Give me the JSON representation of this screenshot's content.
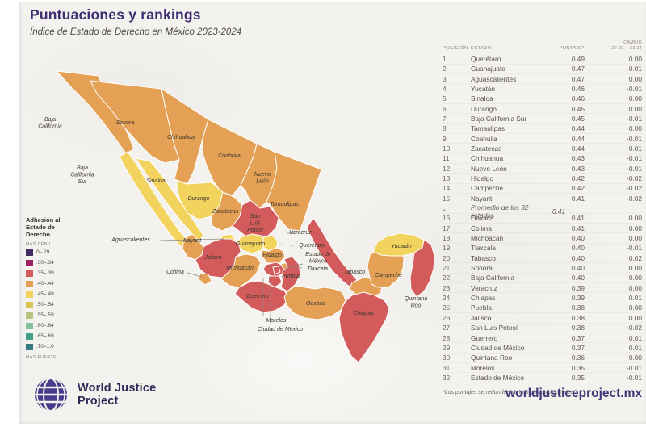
{
  "header": {
    "title": "Puntuaciones y rankings",
    "subtitle": "Índice de Estado de Derecho en México 2023-2024"
  },
  "colors": {
    "title_purple": "#3d2f72",
    "logo_purple": "#473c8b",
    "bands": {
      "yellow": "#f2d35e",
      "orange": "#e4a054",
      "red": "#d45b5c"
    }
  },
  "legend": {
    "title": "Adhesión al Estado de Derecho",
    "weak": "MÁS DÉBIL",
    "strong": "MÁS FUERTE",
    "bins": [
      {
        "label": "0–.29",
        "color": "#432a62"
      },
      {
        "label": ".30–.34",
        "color": "#9d2163"
      },
      {
        "label": ".35–.39",
        "color": "#d45b5c"
      },
      {
        "label": ".40–.44",
        "color": "#e4a054"
      },
      {
        "label": ".45–.49",
        "color": "#f2d35e"
      },
      {
        "label": ".50–.54",
        "color": "#d8c254"
      },
      {
        "label": ".55–.59",
        "color": "#b7c37e"
      },
      {
        "label": ".60–.64",
        "color": "#84c09e"
      },
      {
        "label": ".65–.69",
        "color": "#43a187"
      },
      {
        "label": ".70–1.0",
        "color": "#3b7a80"
      }
    ]
  },
  "table": {
    "col_posicion": "POSICIÓN",
    "col_estado": "ESTADO",
    "col_puntaje": "PUNTAJE*",
    "col_cambio_1": "CAMBIO",
    "col_cambio_2": "22-23 —23-24",
    "footnote": "*Los puntajes se redondean a dos puntos decimales.",
    "rows": [
      {
        "pos": "1",
        "estado": "Querétaro",
        "puntaje": "0.49",
        "cambio": "0.00",
        "band": "yellow"
      },
      {
        "pos": "2",
        "estado": "Guanajuato",
        "puntaje": "0.47",
        "cambio": "-0.01",
        "band": "yellow"
      },
      {
        "pos": "3",
        "estado": "Aguascalientes",
        "puntaje": "0.47",
        "cambio": "0.00",
        "band": "yellow"
      },
      {
        "pos": "4",
        "estado": "Yucatán",
        "puntaje": "0.46",
        "cambio": "-0.01",
        "band": "yellow"
      },
      {
        "pos": "5",
        "estado": "Sinaloa",
        "puntaje": "0.46",
        "cambio": "0.00",
        "band": "yellow"
      },
      {
        "pos": "6",
        "estado": "Durango",
        "puntaje": "0.45",
        "cambio": "0.00",
        "band": "yellow"
      },
      {
        "pos": "7",
        "estado": "Baja California Sur",
        "puntaje": "0.45",
        "cambio": "-0.01",
        "band": "yellow"
      },
      {
        "pos": "8",
        "estado": "Tamaulipas",
        "puntaje": "0.44",
        "cambio": "0.00",
        "band": "orange"
      },
      {
        "pos": "9",
        "estado": "Coahuila",
        "puntaje": "0.44",
        "cambio": "-0.01",
        "band": "orange"
      },
      {
        "pos": "10",
        "estado": "Zacatecas",
        "puntaje": "0.44",
        "cambio": "0.01",
        "band": "orange"
      },
      {
        "pos": "11",
        "estado": "Chihuahua",
        "puntaje": "0.43",
        "cambio": "-0.01",
        "band": "orange"
      },
      {
        "pos": "12",
        "estado": "Nuevo León",
        "puntaje": "0.43",
        "cambio": "-0.01",
        "band": "orange"
      },
      {
        "pos": "13",
        "estado": "Hidalgo",
        "puntaje": "0.42",
        "cambio": "-0.02",
        "band": "orange"
      },
      {
        "pos": "14",
        "estado": "Campeche",
        "puntaje": "0.42",
        "cambio": "-0.02",
        "band": "orange"
      },
      {
        "pos": "15",
        "estado": "Nayarit",
        "puntaje": "0.41",
        "cambio": "-0.02",
        "band": "orange"
      },
      {
        "pos": "*",
        "estado": "Promedio de los 32 estados",
        "puntaje": "0.41",
        "cambio": "",
        "band": null,
        "promedio": true
      },
      {
        "pos": "16",
        "estado": "Oaxaca",
        "puntaje": "0.41",
        "cambio": "0.00",
        "band": "orange"
      },
      {
        "pos": "17",
        "estado": "Colima",
        "puntaje": "0.41",
        "cambio": "0.00",
        "band": "orange"
      },
      {
        "pos": "18",
        "estado": "Michoacán",
        "puntaje": "0.40",
        "cambio": "0.00",
        "band": "orange"
      },
      {
        "pos": "19",
        "estado": "Tlaxcala",
        "puntaje": "0.40",
        "cambio": "-0.01",
        "band": "orange"
      },
      {
        "pos": "20",
        "estado": "Tabasco",
        "puntaje": "0.40",
        "cambio": "0.02",
        "band": "orange"
      },
      {
        "pos": "21",
        "estado": "Sonora",
        "puntaje": "0.40",
        "cambio": "0.00",
        "band": "orange"
      },
      {
        "pos": "22",
        "estado": "Baja California",
        "puntaje": "0.40",
        "cambio": "0.00",
        "band": "orange"
      },
      {
        "pos": "23",
        "estado": "Veracruz",
        "puntaje": "0.39",
        "cambio": "0.00",
        "band": "red"
      },
      {
        "pos": "24",
        "estado": "Chiapas",
        "puntaje": "0.39",
        "cambio": "0.01",
        "band": "red"
      },
      {
        "pos": "25",
        "estado": "Puebla",
        "puntaje": "0.38",
        "cambio": "0.00",
        "band": "red"
      },
      {
        "pos": "26",
        "estado": "Jalisco",
        "puntaje": "0.38",
        "cambio": "0.00",
        "band": "red"
      },
      {
        "pos": "27",
        "estado": "San Luis Potosí",
        "puntaje": "0.38",
        "cambio": "-0.02",
        "band": "red"
      },
      {
        "pos": "28",
        "estado": "Guerrero",
        "puntaje": "0.37",
        "cambio": "0.01",
        "band": "red"
      },
      {
        "pos": "29",
        "estado": "Ciudad de México",
        "puntaje": "0.37",
        "cambio": "0.01",
        "band": "red"
      },
      {
        "pos": "30",
        "estado": "Quintana Roo",
        "puntaje": "0.36",
        "cambio": "0.00",
        "band": "red"
      },
      {
        "pos": "31",
        "estado": "Morelos",
        "puntaje": "0.35",
        "cambio": "-0.01",
        "band": "red"
      },
      {
        "pos": "32",
        "estado": "Estado de México",
        "puntaje": "0.35",
        "cambio": "-0.01",
        "band": "red"
      }
    ]
  },
  "map": {
    "states": [
      {
        "id": "bc",
        "label": [
          "Baja",
          "California"
        ],
        "band": "orange"
      },
      {
        "id": "bcs",
        "label": [
          "Baja",
          "California",
          "Sur"
        ],
        "band": "yellow"
      },
      {
        "id": "son",
        "label": [
          "Sonora"
        ],
        "band": "orange"
      },
      {
        "id": "chih",
        "label": [
          "Chihuahua"
        ],
        "band": "orange"
      },
      {
        "id": "coah",
        "label": [
          "Coahuila"
        ],
        "band": "orange"
      },
      {
        "id": "nl",
        "label": [
          "Nuevo",
          "León"
        ],
        "band": "orange"
      },
      {
        "id": "tam",
        "label": [
          "Tamaulipas"
        ],
        "band": "orange"
      },
      {
        "id": "sin",
        "label": [
          "Sinaloa"
        ],
        "band": "yellow"
      },
      {
        "id": "dur",
        "label": [
          "Durango"
        ],
        "band": "yellow"
      },
      {
        "id": "zac",
        "label": [
          "Zacatecas"
        ],
        "band": "orange"
      },
      {
        "id": "slp",
        "label": [
          "San",
          "Luis",
          "Potosí"
        ],
        "band": "red"
      },
      {
        "id": "nay",
        "label": [
          "Nayarit"
        ],
        "band": "orange"
      },
      {
        "id": "ags",
        "label": [
          "Aguascalientes"
        ],
        "band": "yellow"
      },
      {
        "id": "gto",
        "label": [
          "Guanajuato"
        ],
        "band": "yellow"
      },
      {
        "id": "qro",
        "label": [
          "Querétaro"
        ],
        "band": "yellow"
      },
      {
        "id": "hgo",
        "label": [
          "Hidalgo"
        ],
        "band": "orange"
      },
      {
        "id": "jal",
        "label": [
          "Jalisco"
        ],
        "band": "red"
      },
      {
        "id": "col",
        "label": [
          "Colima"
        ],
        "band": "orange"
      },
      {
        "id": "mich",
        "label": [
          "Michoacán"
        ],
        "band": "orange"
      },
      {
        "id": "edomex",
        "label": [
          "Estado de",
          "México"
        ],
        "band": "red"
      },
      {
        "id": "tlax",
        "label": [
          "Tlaxcala"
        ],
        "band": "orange"
      },
      {
        "id": "cdmx",
        "label": [
          "Ciudad de México"
        ],
        "band": "red"
      },
      {
        "id": "mor",
        "label": [
          "Morelos"
        ],
        "band": "red"
      },
      {
        "id": "pue",
        "label": [
          "Puebla"
        ],
        "band": "red"
      },
      {
        "id": "ver",
        "label": [
          "Veracruz"
        ],
        "band": "red"
      },
      {
        "id": "gro",
        "label": [
          "Guerrero"
        ],
        "band": "red"
      },
      {
        "id": "oax",
        "label": [
          "Oaxaca"
        ],
        "band": "orange"
      },
      {
        "id": "tab",
        "label": [
          "Tabasco"
        ],
        "band": "orange"
      },
      {
        "id": "chia",
        "label": [
          "Chiapas"
        ],
        "band": "red"
      },
      {
        "id": "camp",
        "label": [
          "Campeche"
        ],
        "band": "orange"
      },
      {
        "id": "yuc",
        "label": [
          "Yucatán"
        ],
        "band": "yellow"
      },
      {
        "id": "qroo",
        "label": [
          "Quintana",
          "Roo"
        ],
        "band": "red"
      }
    ]
  },
  "footer": {
    "logo_line1": "World Justice",
    "logo_line2": "Project",
    "website": "worldjusticeproject.mx"
  },
  "chart_data": {
    "type": "table",
    "title": "Índice de Estado de Derecho en México 2023-2024",
    "columns": [
      "POSICIÓN",
      "ESTADO",
      "PUNTAJE*",
      "CAMBIO 22-23 —23-24"
    ],
    "categories": [
      "Querétaro",
      "Guanajuato",
      "Aguascalientes",
      "Yucatán",
      "Sinaloa",
      "Durango",
      "Baja California Sur",
      "Tamaulipas",
      "Coahuila",
      "Zacatecas",
      "Chihuahua",
      "Nuevo León",
      "Hidalgo",
      "Campeche",
      "Nayarit",
      "Oaxaca",
      "Colima",
      "Michoacán",
      "Tlaxcala",
      "Tabasco",
      "Sonora",
      "Baja California",
      "Veracruz",
      "Chiapas",
      "Puebla",
      "Jalisco",
      "San Luis Potosí",
      "Guerrero",
      "Ciudad de México",
      "Quintana Roo",
      "Morelos",
      "Estado de México"
    ],
    "values": [
      0.49,
      0.47,
      0.47,
      0.46,
      0.46,
      0.45,
      0.45,
      0.44,
      0.44,
      0.44,
      0.43,
      0.43,
      0.42,
      0.42,
      0.41,
      0.41,
      0.41,
      0.4,
      0.4,
      0.4,
      0.4,
      0.4,
      0.39,
      0.39,
      0.38,
      0.38,
      0.38,
      0.37,
      0.37,
      0.36,
      0.35,
      0.35
    ],
    "changes": [
      0.0,
      -0.01,
      0.0,
      -0.01,
      0.0,
      0.0,
      -0.01,
      0.0,
      -0.01,
      0.01,
      -0.01,
      -0.01,
      -0.02,
      -0.02,
      -0.02,
      0.0,
      0.0,
      0.0,
      -0.01,
      0.02,
      0.0,
      0.0,
      0.0,
      0.01,
      0.0,
      0.0,
      -0.02,
      0.01,
      0.01,
      0.0,
      -0.01,
      -0.01
    ],
    "average": {
      "label": "Promedio de los 32 estados",
      "value": 0.41
    }
  }
}
